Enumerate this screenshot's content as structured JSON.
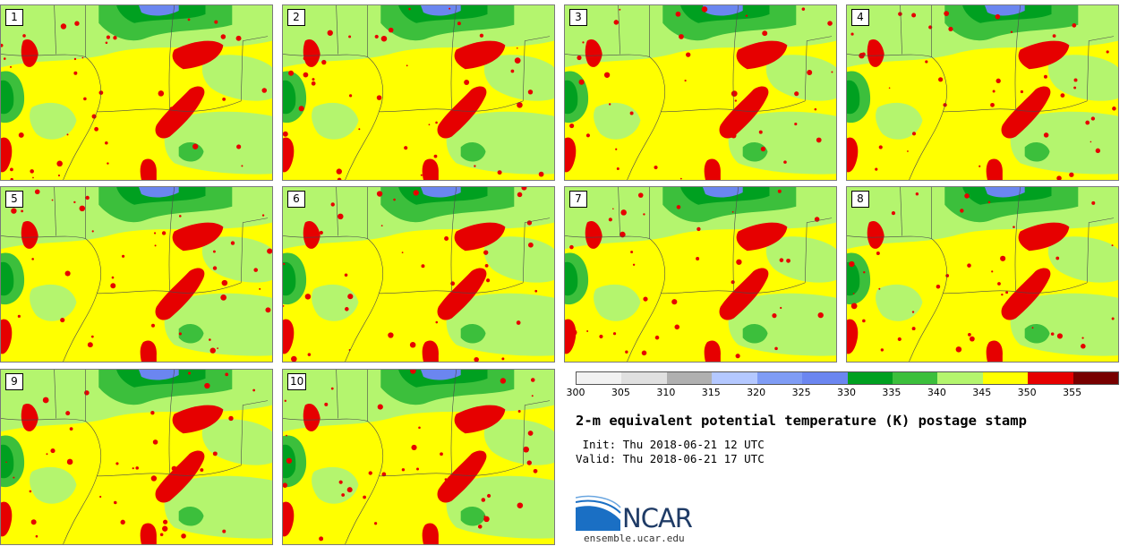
{
  "members": [
    {
      "label": "1"
    },
    {
      "label": "2"
    },
    {
      "label": "3"
    },
    {
      "label": "4"
    },
    {
      "label": "5"
    },
    {
      "label": "6"
    },
    {
      "label": "7"
    },
    {
      "label": "8"
    },
    {
      "label": "9"
    },
    {
      "label": "10"
    }
  ],
  "colorbar": {
    "ticks": [
      "300",
      "305",
      "310",
      "315",
      "320",
      "325",
      "330",
      "335",
      "340",
      "345",
      "350",
      "355"
    ],
    "colors": [
      "#f2f2f2",
      "#e0e0e0",
      "#b0b0b0",
      "#b4c8ff",
      "#7f9cf5",
      "#6b86f0",
      "#00a020",
      "#3cbf3c",
      "#b4f56e",
      "#ffff00",
      "#e60000",
      "#780000"
    ]
  },
  "title": "2-m equivalent potential temperature (K) postage stamp",
  "init": " Init: Thu 2018-06-21 12 UTC",
  "valid": "Valid: Thu 2018-06-21 17 UTC",
  "logo": {
    "text": "NCAR",
    "url": "ensemble.ucar.edu"
  },
  "colors": {
    "background": "#ffff00",
    "land_green_light": "#b4f56e",
    "land_green": "#3cbf3c",
    "land_green_dark": "#00a020",
    "cold": "#6b86f0",
    "hot": "#e60000"
  }
}
